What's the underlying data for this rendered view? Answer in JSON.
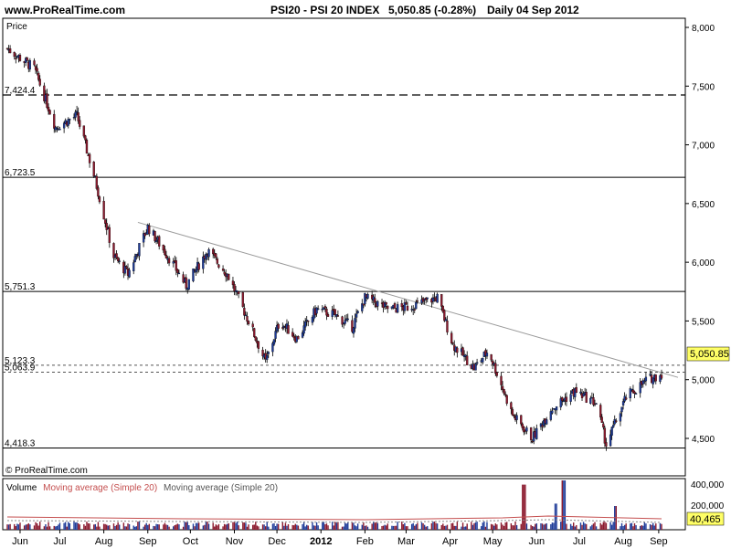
{
  "header": {
    "site": "www.ProRealTime.com",
    "instrument": "PSI20 - PSI 20 INDEX",
    "last_price_change": "5,050.85 (-0.28%)",
    "period_date": "Daily  04 Sep 2012"
  },
  "price_panel": {
    "label": "Price",
    "watermark": "© ProRealTime.com",
    "last_price_tag": "5,050.85",
    "y_ticks": [
      "8,000",
      "7,500",
      "7,000",
      "6,500",
      "6,000",
      "5,500",
      "5,000",
      "4,500"
    ],
    "levels": [
      {
        "label": "7,424.4",
        "value": 7424.4,
        "style": "dashed"
      },
      {
        "label": "6,723.5",
        "value": 6723.5,
        "style": "solid"
      },
      {
        "label": "5,751.3",
        "value": 5751.3,
        "style": "solid"
      },
      {
        "label": "5,123.3",
        "value": 5123.3,
        "style": "dotted"
      },
      {
        "label": "5,063.9",
        "value": 5063.9,
        "style": "dotted"
      },
      {
        "label": "4,418.3",
        "value": 4418.3,
        "style": "solid"
      }
    ]
  },
  "volume_panel": {
    "title_volume": "Volume",
    "title_ma_red": "Moving average (Simple 20)",
    "title_ma_gray": "Moving average (Simple 20)",
    "y_ticks": [
      "400,000",
      "200,000"
    ],
    "last_volume_tag": "40,465"
  },
  "x_axis": {
    "labels": [
      "Jun",
      "Jul",
      "Aug",
      "Sep",
      "Oct",
      "Nov",
      "Dec",
      "2012",
      "Feb",
      "Mar",
      "Apr",
      "May",
      "Jun",
      "Jul",
      "Aug",
      "Sep"
    ]
  },
  "colors": {
    "up": "#1f3c99",
    "down": "#8b1a2e",
    "trendline": "#9a9a9a",
    "price_tag": "#ffff66",
    "ma_red": "#c44e4e",
    "ma_gray": "#888888"
  },
  "chart_data": {
    "type": "candlestick",
    "x_start": "2011-06",
    "x_end": "2012-09-04",
    "ylim": [
      4300,
      8100
    ],
    "price_anchors": [
      [
        "2011-06-01",
        7820
      ],
      [
        "2011-06-20",
        7650
      ],
      [
        "2011-07-05",
        7150
      ],
      [
        "2011-07-20",
        7250
      ],
      [
        "2011-08-02",
        6700
      ],
      [
        "2011-08-15",
        6050
      ],
      [
        "2011-08-25",
        5900
      ],
      [
        "2011-09-08",
        6300
      ],
      [
        "2011-09-25",
        6000
      ],
      [
        "2011-10-05",
        5800
      ],
      [
        "2011-10-20",
        6100
      ],
      [
        "2011-11-03",
        5900
      ],
      [
        "2011-11-18",
        5500
      ],
      [
        "2011-11-30",
        5150
      ],
      [
        "2011-12-10",
        5500
      ],
      [
        "2011-12-22",
        5350
      ],
      [
        "2012-01-05",
        5600
      ],
      [
        "2012-01-18",
        5550
      ],
      [
        "2012-01-30",
        5450
      ],
      [
        "2012-02-08",
        5700
      ],
      [
        "2012-02-25",
        5600
      ],
      [
        "2012-03-10",
        5620
      ],
      [
        "2012-03-30",
        5700
      ],
      [
        "2012-04-10",
        5300
      ],
      [
        "2012-04-25",
        5100
      ],
      [
        "2012-05-05",
        5250
      ],
      [
        "2012-05-22",
        4700
      ],
      [
        "2012-06-05",
        4500
      ],
      [
        "2012-06-18",
        4750
      ],
      [
        "2012-07-05",
        4900
      ],
      [
        "2012-07-20",
        4800
      ],
      [
        "2012-07-27",
        4450
      ],
      [
        "2012-08-10",
        4850
      ],
      [
        "2012-08-25",
        5000
      ],
      [
        "2012-09-04",
        5050
      ]
    ],
    "trendline": [
      [
        "2011-09-01",
        6340
      ],
      [
        "2012-09-04",
        5060
      ]
    ],
    "volume_scale": "0 to 400,000",
    "volume_spikes": [
      [
        "2012-05-30",
        380000
      ],
      [
        "2012-06-22",
        220000
      ],
      [
        "2012-06-27",
        500000
      ],
      [
        "2012-08-03",
        200000
      ]
    ]
  }
}
